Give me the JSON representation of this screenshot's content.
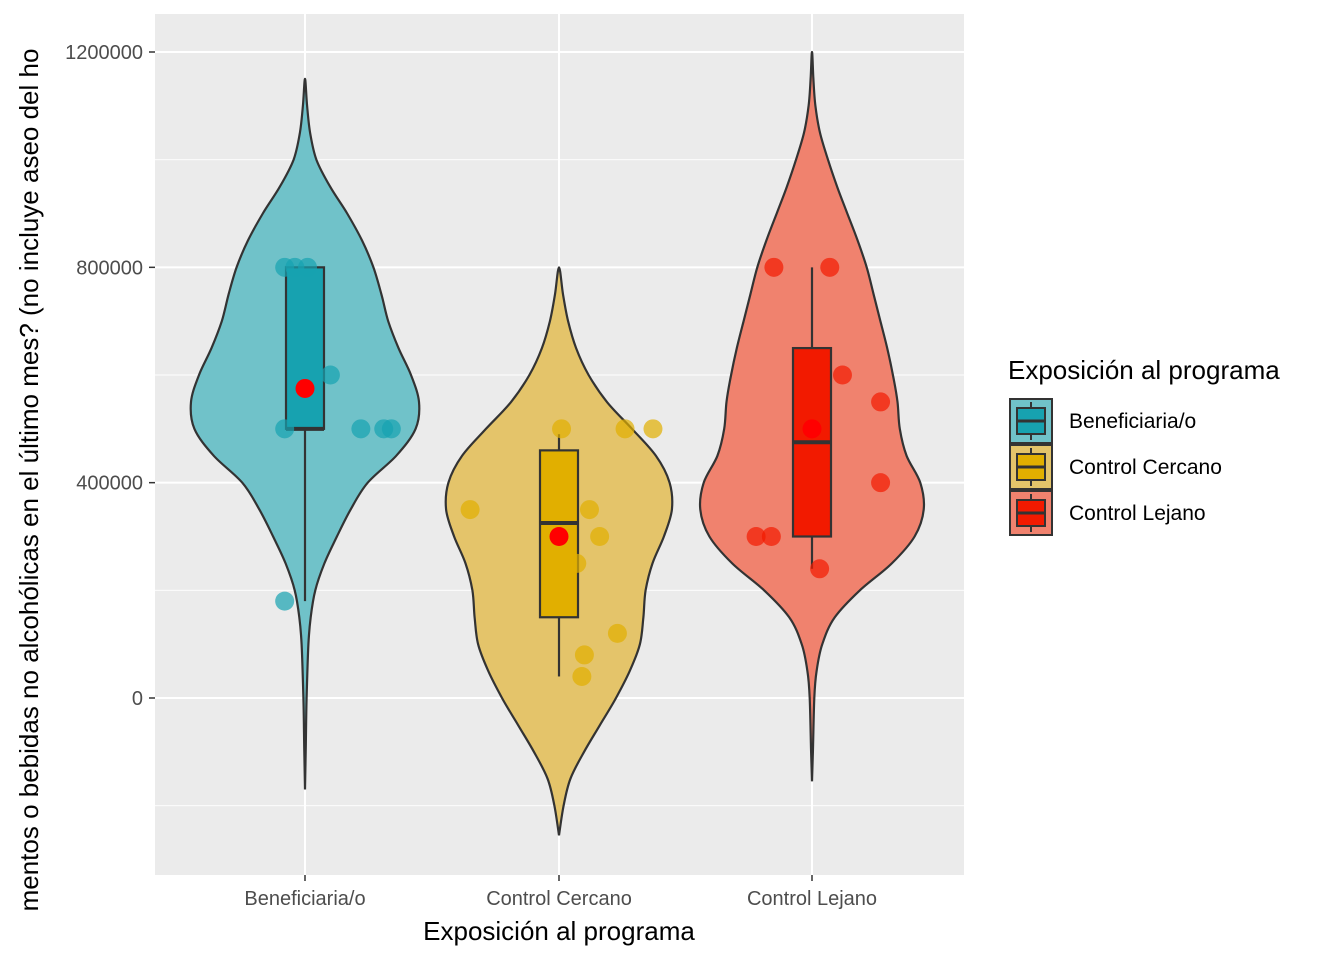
{
  "chart_data": {
    "type": "violin",
    "xlabel": "Exposición al programa",
    "ylabel": "mentos o bebidas no alcohólicas en el último mes? (no incluye aseo del ho",
    "ylim": [
      -330000,
      1280000
    ],
    "yticks": [
      0,
      400000,
      800000,
      1200000
    ],
    "ytick_labels": [
      "0",
      "400000",
      "800000",
      "1200000"
    ],
    "grid": true,
    "legend": {
      "title": "Exposición al programa",
      "placement": "right",
      "entries": [
        "Beneficiaria/o",
        "Control Cercano",
        "Control Lejano"
      ]
    },
    "groups": [
      {
        "name": "Beneficiaria/o",
        "fill": "#17A2B0",
        "violin_fill": "#70C2C9",
        "violin": {
          "min": -170000,
          "max": 1150000,
          "profile": [
            [
              -170000,
              0.0
            ],
            [
              -100000,
              0.006
            ],
            [
              0,
              0.014
            ],
            [
              100000,
              0.03
            ],
            [
              150000,
              0.05
            ],
            [
              200000,
              0.09
            ],
            [
              250000,
              0.17
            ],
            [
              300000,
              0.28
            ],
            [
              350000,
              0.4
            ],
            [
              400000,
              0.55
            ],
            [
              450000,
              0.8
            ],
            [
              500000,
              0.97
            ],
            [
              550000,
              1.0
            ],
            [
              600000,
              0.93
            ],
            [
              650000,
              0.82
            ],
            [
              700000,
              0.73
            ],
            [
              750000,
              0.67
            ],
            [
              800000,
              0.6
            ],
            [
              850000,
              0.5
            ],
            [
              900000,
              0.37
            ],
            [
              950000,
              0.22
            ],
            [
              1000000,
              0.1
            ],
            [
              1050000,
              0.045
            ],
            [
              1100000,
              0.018
            ],
            [
              1150000,
              0.0
            ]
          ]
        },
        "box": {
          "q1": 500000,
          "median": 500000,
          "q3": 800000,
          "whisker_low": 180000,
          "whisker_high": 800000
        },
        "mean": 575000,
        "points": [
          {
            "dx": -0.08,
            "y": 800000
          },
          {
            "dx": -0.04,
            "y": 800000
          },
          {
            "dx": 0.01,
            "y": 800000
          },
          {
            "dx": 0.1,
            "y": 600000
          },
          {
            "dx": -0.08,
            "y": 500000
          },
          {
            "dx": 0.22,
            "y": 500000
          },
          {
            "dx": 0.31,
            "y": 500000
          },
          {
            "dx": 0.34,
            "y": 500000
          },
          {
            "dx": -0.08,
            "y": 180000
          }
        ]
      },
      {
        "name": "Control Cercano",
        "fill": "#E1AF00",
        "violin_fill": "#E4C46A",
        "violin": {
          "min": -255000,
          "max": 800000,
          "profile": [
            [
              -255000,
              0.0
            ],
            [
              -200000,
              0.04
            ],
            [
              -150000,
              0.1
            ],
            [
              -100000,
              0.22
            ],
            [
              -50000,
              0.36
            ],
            [
              0,
              0.5
            ],
            [
              50000,
              0.62
            ],
            [
              100000,
              0.71
            ],
            [
              150000,
              0.74
            ],
            [
              200000,
              0.76
            ],
            [
              250000,
              0.82
            ],
            [
              300000,
              0.92
            ],
            [
              350000,
              0.99
            ],
            [
              400000,
              0.97
            ],
            [
              450000,
              0.85
            ],
            [
              500000,
              0.64
            ],
            [
              550000,
              0.42
            ],
            [
              600000,
              0.26
            ],
            [
              650000,
              0.15
            ],
            [
              700000,
              0.08
            ],
            [
              750000,
              0.035
            ],
            [
              800000,
              0.0
            ]
          ]
        },
        "box": {
          "q1": 150000,
          "median": 325000,
          "q3": 460000,
          "whisker_low": 40000,
          "whisker_high": 490000
        },
        "mean": 300000,
        "points": [
          {
            "dx": 0.01,
            "y": 500000
          },
          {
            "dx": 0.26,
            "y": 500000
          },
          {
            "dx": 0.37,
            "y": 500000
          },
          {
            "dx": -0.35,
            "y": 350000
          },
          {
            "dx": 0.12,
            "y": 350000
          },
          {
            "dx": 0.16,
            "y": 300000
          },
          {
            "dx": 0.07,
            "y": 250000
          },
          {
            "dx": 0.23,
            "y": 120000
          },
          {
            "dx": 0.1,
            "y": 80000
          },
          {
            "dx": 0.09,
            "y": 40000
          }
        ]
      },
      {
        "name": "Control Lejano",
        "fill": "#F21A00",
        "violin_fill": "#F0826E",
        "violin": {
          "min": -155000,
          "max": 1200000,
          "profile": [
            [
              -155000,
              0.0
            ],
            [
              -100000,
              0.008
            ],
            [
              0,
              0.02
            ],
            [
              50000,
              0.04
            ],
            [
              100000,
              0.09
            ],
            [
              150000,
              0.2
            ],
            [
              200000,
              0.42
            ],
            [
              250000,
              0.7
            ],
            [
              300000,
              0.9
            ],
            [
              350000,
              0.98
            ],
            [
              400000,
              0.95
            ],
            [
              450000,
              0.83
            ],
            [
              500000,
              0.77
            ],
            [
              550000,
              0.75
            ],
            [
              600000,
              0.71
            ],
            [
              650000,
              0.66
            ],
            [
              700000,
              0.6
            ],
            [
              750000,
              0.54
            ],
            [
              800000,
              0.48
            ],
            [
              850000,
              0.4
            ],
            [
              900000,
              0.31
            ],
            [
              950000,
              0.22
            ],
            [
              1000000,
              0.14
            ],
            [
              1050000,
              0.07
            ],
            [
              1100000,
              0.03
            ],
            [
              1150000,
              0.012
            ],
            [
              1200000,
              0.0
            ]
          ]
        },
        "box": {
          "q1": 300000,
          "median": 475000,
          "q3": 650000,
          "whisker_low": 240000,
          "whisker_high": 800000
        },
        "mean": 500000,
        "points": [
          {
            "dx": -0.15,
            "y": 800000
          },
          {
            "dx": 0.07,
            "y": 800000
          },
          {
            "dx": 0.12,
            "y": 600000
          },
          {
            "dx": 0.27,
            "y": 550000
          },
          {
            "dx": 0.27,
            "y": 400000
          },
          {
            "dx": -0.22,
            "y": 300000
          },
          {
            "dx": -0.16,
            "y": 300000
          },
          {
            "dx": 0.03,
            "y": 240000
          }
        ]
      }
    ]
  }
}
